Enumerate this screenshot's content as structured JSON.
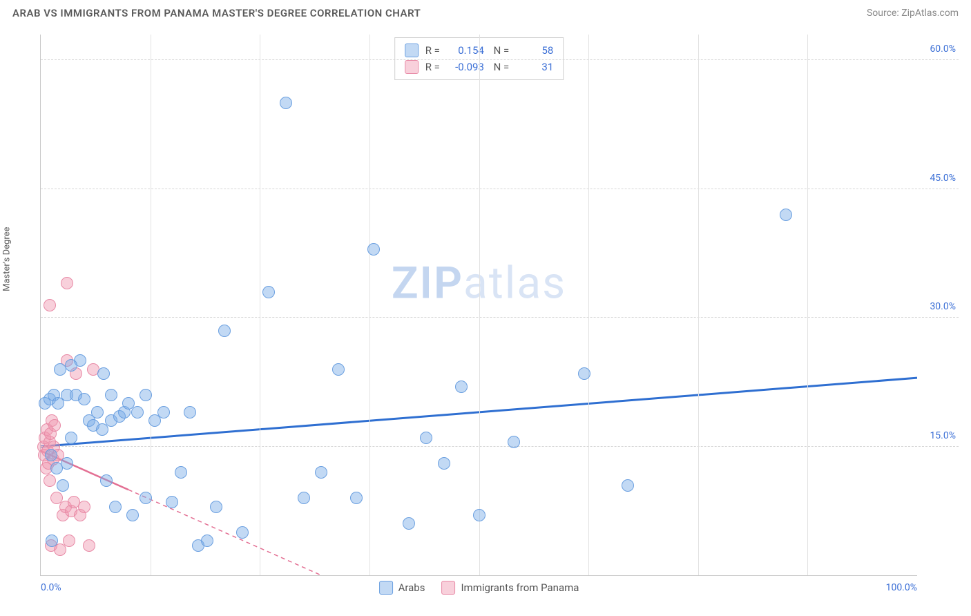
{
  "title": "ARAB VS IMMIGRANTS FROM PANAMA MASTER'S DEGREE CORRELATION CHART",
  "source": "Source: ZipAtlas.com",
  "watermark": {
    "zip": "ZIP",
    "atlas": "atlas"
  },
  "chart": {
    "type": "scatter",
    "ylabel": "Master's Degree",
    "xlim": [
      0,
      100
    ],
    "ylim": [
      0,
      63
    ],
    "xticks": [
      0,
      100
    ],
    "xtick_labels": [
      "0.0%",
      "100.0%"
    ],
    "xgrid_minor": [
      12.5,
      25,
      37.5,
      50,
      62.5,
      75,
      87.5
    ],
    "yticks": [
      15,
      30,
      45,
      60
    ],
    "ytick_labels": [
      "15.0%",
      "30.0%",
      "45.0%",
      "60.0%"
    ],
    "background_color": "#ffffff",
    "grid_color": "#d6d6d6",
    "axis_color": "#c8c8c8",
    "tick_label_color": "#3b6fd6",
    "marker_radius": 9,
    "series": {
      "arabs": {
        "label": "Arabs",
        "fill": "rgba(120,170,230,0.45)",
        "stroke": "#6a9fe0",
        "trend_color": "#2f6fd1",
        "trend_dash": "none",
        "trend": {
          "x1": 0,
          "y1": 15.0,
          "x2": 100,
          "y2": 23.0
        },
        "R": "0.154",
        "N": "58",
        "points": [
          [
            0.5,
            20.0
          ],
          [
            1.0,
            20.5
          ],
          [
            1.2,
            14.0
          ],
          [
            1.5,
            21.0
          ],
          [
            1.8,
            12.5
          ],
          [
            2.0,
            20.0
          ],
          [
            2.2,
            24.0
          ],
          [
            2.5,
            10.5
          ],
          [
            3.0,
            21.0
          ],
          [
            3.0,
            13.0
          ],
          [
            3.5,
            16.0
          ],
          [
            4.0,
            21.0
          ],
          [
            4.5,
            25.0
          ],
          [
            5.0,
            20.5
          ],
          [
            5.5,
            18.0
          ],
          [
            6.0,
            17.5
          ],
          [
            6.5,
            19.0
          ],
          [
            7.0,
            17.0
          ],
          [
            7.5,
            11.0
          ],
          [
            8.0,
            21.0
          ],
          [
            8.0,
            18.0
          ],
          [
            8.5,
            8.0
          ],
          [
            9.0,
            18.5
          ],
          [
            9.5,
            19.0
          ],
          [
            10.0,
            20.0
          ],
          [
            10.5,
            7.0
          ],
          [
            11.0,
            19.0
          ],
          [
            12.0,
            21.0
          ],
          [
            12.0,
            9.0
          ],
          [
            13.0,
            18.0
          ],
          [
            14.0,
            19.0
          ],
          [
            15.0,
            8.5
          ],
          [
            16.0,
            12.0
          ],
          [
            17.0,
            19.0
          ],
          [
            18.0,
            3.5
          ],
          [
            19.0,
            4.0
          ],
          [
            20.0,
            8.0
          ],
          [
            21.0,
            28.5
          ],
          [
            23.0,
            5.0
          ],
          [
            26.0,
            33.0
          ],
          [
            28.0,
            55.0
          ],
          [
            30.0,
            9.0
          ],
          [
            32.0,
            12.0
          ],
          [
            34.0,
            24.0
          ],
          [
            36.0,
            9.0
          ],
          [
            38.0,
            38.0
          ],
          [
            42.0,
            6.0
          ],
          [
            44.0,
            16.0
          ],
          [
            46.0,
            13.0
          ],
          [
            48.0,
            22.0
          ],
          [
            50.0,
            7.0
          ],
          [
            54.0,
            15.5
          ],
          [
            62.0,
            23.5
          ],
          [
            67.0,
            10.5
          ],
          [
            85.0,
            42.0
          ],
          [
            3.5,
            24.5
          ],
          [
            7.2,
            23.5
          ],
          [
            1.3,
            4.0
          ]
        ]
      },
      "panama": {
        "label": "Immigrants from Panama",
        "fill": "rgba(240,150,175,0.45)",
        "stroke": "#e88aa6",
        "trend_color": "#e36f93",
        "trend_dash": "6 5",
        "trend": {
          "x1": 0,
          "y1": 14.5,
          "x2": 32,
          "y2": 0
        },
        "trend_solid_until": 10,
        "R": "-0.093",
        "N": "31",
        "points": [
          [
            0.3,
            15.0
          ],
          [
            0.4,
            14.0
          ],
          [
            0.5,
            16.0
          ],
          [
            0.6,
            12.5
          ],
          [
            0.7,
            17.0
          ],
          [
            0.8,
            14.5
          ],
          [
            0.9,
            13.0
          ],
          [
            1.0,
            15.5
          ],
          [
            1.0,
            11.0
          ],
          [
            1.1,
            16.5
          ],
          [
            1.2,
            3.5
          ],
          [
            1.3,
            18.0
          ],
          [
            1.4,
            13.5
          ],
          [
            1.5,
            15.0
          ],
          [
            1.6,
            17.5
          ],
          [
            1.8,
            9.0
          ],
          [
            2.0,
            14.0
          ],
          [
            2.2,
            3.0
          ],
          [
            2.5,
            7.0
          ],
          [
            2.8,
            8.0
          ],
          [
            3.0,
            25.0
          ],
          [
            3.2,
            4.0
          ],
          [
            3.5,
            7.5
          ],
          [
            3.8,
            8.5
          ],
          [
            4.0,
            23.5
          ],
          [
            4.5,
            7.0
          ],
          [
            5.0,
            8.0
          ],
          [
            3.0,
            34.0
          ],
          [
            1.0,
            31.5
          ],
          [
            5.5,
            3.5
          ],
          [
            6.0,
            24.0
          ]
        ]
      }
    }
  }
}
